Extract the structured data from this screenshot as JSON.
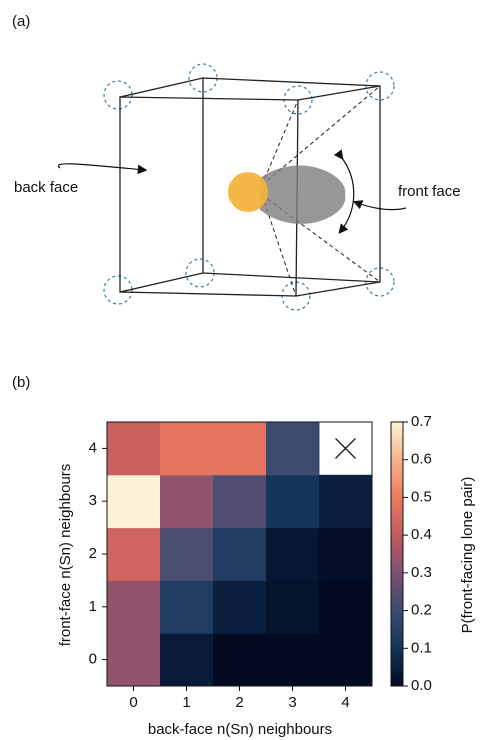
{
  "diagram": {
    "panel_label": "(a)",
    "labels": {
      "back": "back face",
      "front": "front face"
    }
  },
  "chart_data": {
    "type": "heatmap",
    "panel_label": "(b)",
    "xlabel": "back-face n(Sn) neighbours",
    "ylabel": "front-face n(Sn) neighbours",
    "colorbar_label": "P(front-facing lone pair)",
    "x": [
      0,
      1,
      2,
      3,
      4
    ],
    "y": [
      0,
      1,
      2,
      3,
      4
    ],
    "xlim": [
      -0.5,
      4.5
    ],
    "ylim": [
      -0.5,
      4.5
    ],
    "xticks": [
      0,
      1,
      2,
      3,
      4
    ],
    "yticks": [
      0,
      1,
      2,
      3,
      4
    ],
    "values": [
      [
        0.33,
        0.04,
        0.0,
        0.0,
        0.0
      ],
      [
        0.33,
        0.13,
        0.05,
        0.02,
        0.0
      ],
      [
        0.43,
        0.22,
        0.13,
        0.03,
        0.01
      ],
      [
        0.7,
        0.33,
        0.23,
        0.1,
        0.05
      ],
      [
        0.42,
        0.48,
        0.48,
        0.2,
        null
      ]
    ],
    "clim": [
      0,
      0.7
    ],
    "cticks": [
      {
        "value": 0,
        "label": "0.0"
      },
      0.1,
      0.2,
      0.3,
      0.4,
      0.5,
      0.6,
      0.7
    ],
    "colormap": [
      "#020a22",
      "#13355a",
      "#3e4b70",
      "#7c5172",
      "#c25b5e",
      "#ec7b5e",
      "#f4b48c",
      "#fcf3d6"
    ]
  }
}
